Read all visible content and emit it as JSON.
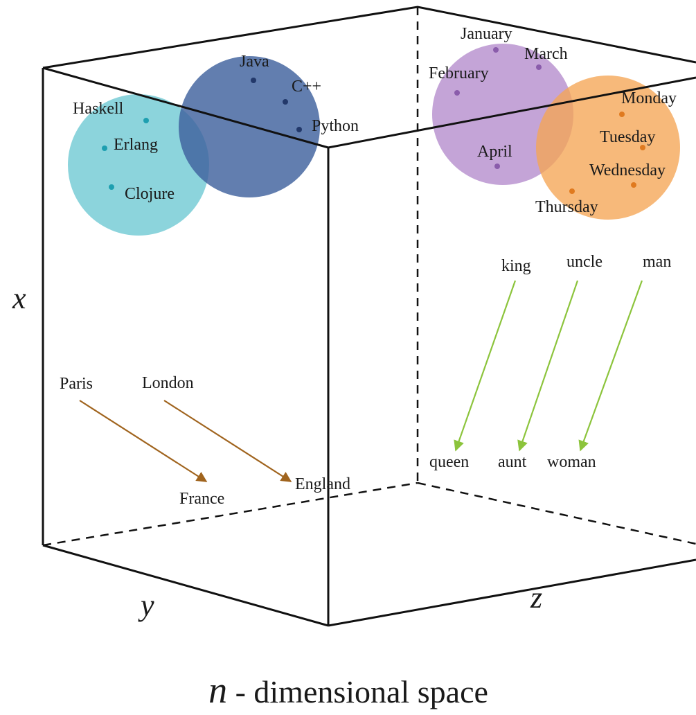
{
  "axes": {
    "x": "x",
    "y": "y",
    "z": "z"
  },
  "caption": {
    "variable": "n",
    "text": " - dimensional space"
  },
  "clusters": {
    "functional": {
      "color": "#5fc4cf",
      "dot_color": "#1e9fb0",
      "labels": [
        "Haskell",
        "Erlang",
        "Clojure"
      ]
    },
    "imperative": {
      "color": "#3f629d",
      "dot_color": "#22386a",
      "labels": [
        "Java",
        "C++",
        "Python"
      ]
    },
    "months": {
      "color": "#b38acc",
      "dot_color": "#8a5cab",
      "labels": [
        "January",
        "February",
        "March",
        "April"
      ]
    },
    "weekdays": {
      "color": "#f5a554",
      "dot_color": "#e07a1f",
      "labels": [
        "Monday",
        "Tuesday",
        "Wednesday",
        "Thursday"
      ]
    }
  },
  "capital_relations": {
    "color": "#a0641e",
    "pairs": [
      {
        "from": "Paris",
        "to": "France"
      },
      {
        "from": "London",
        "to": "England"
      }
    ]
  },
  "gender_relations": {
    "color": "#8cc43c",
    "pairs": [
      {
        "from": "king",
        "to": "queen"
      },
      {
        "from": "uncle",
        "to": "aunt"
      },
      {
        "from": "man",
        "to": "woman"
      }
    ]
  }
}
